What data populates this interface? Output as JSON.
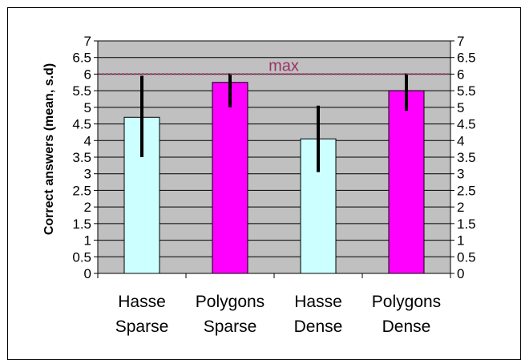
{
  "chart_data": {
    "type": "bar",
    "title": "",
    "xlabel": "",
    "ylabel": "Correct answers (mean, s.d)",
    "ylim": [
      0,
      7
    ],
    "y_ticks": [
      "0",
      "0.5",
      "1",
      "1.5",
      "2",
      "2.5",
      "3",
      "3.5",
      "4",
      "4.5",
      "5",
      "5.5",
      "6",
      "6.5",
      "7"
    ],
    "grid": true,
    "legend": "none",
    "categories": [
      [
        "Hasse",
        "Sparse"
      ],
      [
        "Polygons",
        "Sparse"
      ],
      [
        "Hasse",
        "Dense"
      ],
      [
        "Polygons",
        "Dense"
      ]
    ],
    "values": [
      4.7,
      5.75,
      4.05,
      5.5
    ],
    "error_low": [
      3.5,
      5.0,
      3.05,
      4.9
    ],
    "error_high": [
      5.95,
      6.02,
      5.05,
      6.02
    ],
    "bar_colors": [
      "#ccffff",
      "#ff00ff",
      "#ccffff",
      "#ff00ff"
    ],
    "reference_line": {
      "label": "max",
      "value": 6,
      "color": "#993366"
    },
    "plot_background": "#c0c0c0"
  }
}
